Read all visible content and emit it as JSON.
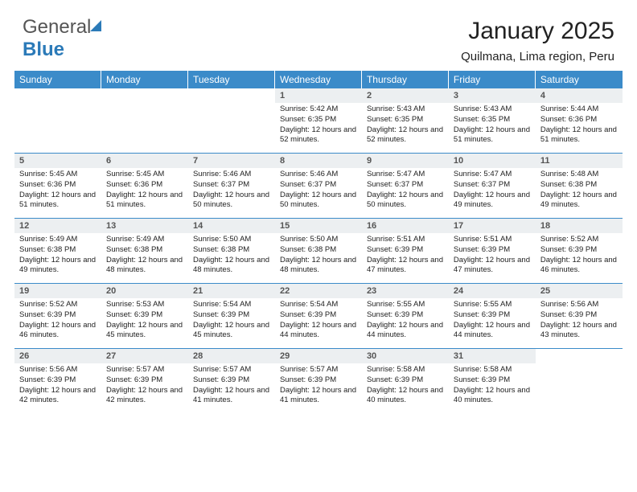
{
  "logo": {
    "text1": "General",
    "text2": "Blue"
  },
  "title": "January 2025",
  "subtitle": "Quilmana, Lima region, Peru",
  "colors": {
    "header_bg": "#3b8bc9",
    "daynum_bg": "#eceff1",
    "week_border": "#3b8bc9"
  },
  "weekdays": [
    "Sunday",
    "Monday",
    "Tuesday",
    "Wednesday",
    "Thursday",
    "Friday",
    "Saturday"
  ],
  "weeks": [
    [
      null,
      null,
      null,
      {
        "n": "1",
        "sr": "5:42 AM",
        "ss": "6:35 PM",
        "dl": "12 hours and 52 minutes."
      },
      {
        "n": "2",
        "sr": "5:43 AM",
        "ss": "6:35 PM",
        "dl": "12 hours and 52 minutes."
      },
      {
        "n": "3",
        "sr": "5:43 AM",
        "ss": "6:35 PM",
        "dl": "12 hours and 51 minutes."
      },
      {
        "n": "4",
        "sr": "5:44 AM",
        "ss": "6:36 PM",
        "dl": "12 hours and 51 minutes."
      }
    ],
    [
      {
        "n": "5",
        "sr": "5:45 AM",
        "ss": "6:36 PM",
        "dl": "12 hours and 51 minutes."
      },
      {
        "n": "6",
        "sr": "5:45 AM",
        "ss": "6:36 PM",
        "dl": "12 hours and 51 minutes."
      },
      {
        "n": "7",
        "sr": "5:46 AM",
        "ss": "6:37 PM",
        "dl": "12 hours and 50 minutes."
      },
      {
        "n": "8",
        "sr": "5:46 AM",
        "ss": "6:37 PM",
        "dl": "12 hours and 50 minutes."
      },
      {
        "n": "9",
        "sr": "5:47 AM",
        "ss": "6:37 PM",
        "dl": "12 hours and 50 minutes."
      },
      {
        "n": "10",
        "sr": "5:47 AM",
        "ss": "6:37 PM",
        "dl": "12 hours and 49 minutes."
      },
      {
        "n": "11",
        "sr": "5:48 AM",
        "ss": "6:38 PM",
        "dl": "12 hours and 49 minutes."
      }
    ],
    [
      {
        "n": "12",
        "sr": "5:49 AM",
        "ss": "6:38 PM",
        "dl": "12 hours and 49 minutes."
      },
      {
        "n": "13",
        "sr": "5:49 AM",
        "ss": "6:38 PM",
        "dl": "12 hours and 48 minutes."
      },
      {
        "n": "14",
        "sr": "5:50 AM",
        "ss": "6:38 PM",
        "dl": "12 hours and 48 minutes."
      },
      {
        "n": "15",
        "sr": "5:50 AM",
        "ss": "6:38 PM",
        "dl": "12 hours and 48 minutes."
      },
      {
        "n": "16",
        "sr": "5:51 AM",
        "ss": "6:39 PM",
        "dl": "12 hours and 47 minutes."
      },
      {
        "n": "17",
        "sr": "5:51 AM",
        "ss": "6:39 PM",
        "dl": "12 hours and 47 minutes."
      },
      {
        "n": "18",
        "sr": "5:52 AM",
        "ss": "6:39 PM",
        "dl": "12 hours and 46 minutes."
      }
    ],
    [
      {
        "n": "19",
        "sr": "5:52 AM",
        "ss": "6:39 PM",
        "dl": "12 hours and 46 minutes."
      },
      {
        "n": "20",
        "sr": "5:53 AM",
        "ss": "6:39 PM",
        "dl": "12 hours and 45 minutes."
      },
      {
        "n": "21",
        "sr": "5:54 AM",
        "ss": "6:39 PM",
        "dl": "12 hours and 45 minutes."
      },
      {
        "n": "22",
        "sr": "5:54 AM",
        "ss": "6:39 PM",
        "dl": "12 hours and 44 minutes."
      },
      {
        "n": "23",
        "sr": "5:55 AM",
        "ss": "6:39 PM",
        "dl": "12 hours and 44 minutes."
      },
      {
        "n": "24",
        "sr": "5:55 AM",
        "ss": "6:39 PM",
        "dl": "12 hours and 44 minutes."
      },
      {
        "n": "25",
        "sr": "5:56 AM",
        "ss": "6:39 PM",
        "dl": "12 hours and 43 minutes."
      }
    ],
    [
      {
        "n": "26",
        "sr": "5:56 AM",
        "ss": "6:39 PM",
        "dl": "12 hours and 42 minutes."
      },
      {
        "n": "27",
        "sr": "5:57 AM",
        "ss": "6:39 PM",
        "dl": "12 hours and 42 minutes."
      },
      {
        "n": "28",
        "sr": "5:57 AM",
        "ss": "6:39 PM",
        "dl": "12 hours and 41 minutes."
      },
      {
        "n": "29",
        "sr": "5:57 AM",
        "ss": "6:39 PM",
        "dl": "12 hours and 41 minutes."
      },
      {
        "n": "30",
        "sr": "5:58 AM",
        "ss": "6:39 PM",
        "dl": "12 hours and 40 minutes."
      },
      {
        "n": "31",
        "sr": "5:58 AM",
        "ss": "6:39 PM",
        "dl": "12 hours and 40 minutes."
      },
      null
    ]
  ],
  "labels": {
    "sunrise": "Sunrise:",
    "sunset": "Sunset:",
    "daylight": "Daylight:"
  }
}
